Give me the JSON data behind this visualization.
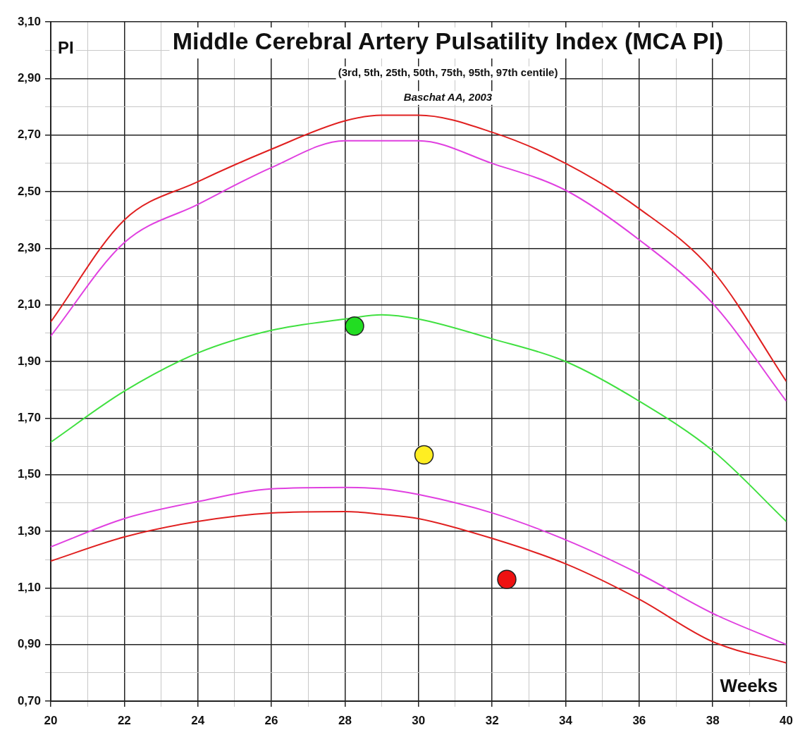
{
  "chart_data": {
    "type": "line",
    "title": "Middle Cerebral Artery Pulsatility Index (MCA PI)",
    "subtitle": "(3rd, 5th, 25th, 50th, 75th, 95th, 97th centile)",
    "annotations": [
      "Baschat AA, 2003"
    ],
    "xlabel": "Weeks",
    "ylabel": "PI",
    "x": [
      20,
      22,
      24,
      26,
      28,
      29,
      30,
      32,
      34,
      36,
      38,
      40
    ],
    "series": [
      {
        "color": "#e02020",
        "values": [
          2.04,
          2.4,
          2.535,
          2.65,
          2.75,
          2.77,
          2.77,
          2.71,
          2.6,
          2.44,
          2.22,
          1.83
        ]
      },
      {
        "color": "#e040e0",
        "values": [
          1.99,
          2.32,
          2.455,
          2.585,
          2.68,
          2.68,
          2.68,
          2.6,
          2.505,
          2.33,
          2.105,
          1.76
        ]
      },
      {
        "color": "#40e040",
        "values": [
          1.615,
          1.795,
          1.93,
          2.01,
          2.05,
          2.065,
          2.05,
          1.98,
          1.9,
          1.76,
          1.585,
          1.335
        ]
      },
      {
        "color": "#e040e0",
        "values": [
          1.245,
          1.345,
          1.405,
          1.45,
          1.455,
          1.45,
          1.43,
          1.365,
          1.27,
          1.15,
          1.01,
          0.9
        ]
      },
      {
        "color": "#e02020",
        "values": [
          1.195,
          1.28,
          1.335,
          1.365,
          1.37,
          1.36,
          1.345,
          1.275,
          1.185,
          1.06,
          0.91,
          0.835
        ]
      },
      {
        "type": "scatter",
        "marker": "circle",
        "x": [
          28.26,
          30.15,
          32.4
        ],
        "values": [
          2.025,
          1.57,
          1.13
        ],
        "colors": [
          "#22dd22",
          "#ffee22",
          "#ee1111"
        ]
      }
    ],
    "marker": "none",
    "line_style": "solid",
    "legend": false,
    "grid": true,
    "xlim": [
      20,
      40
    ],
    "ylim": [
      0.7,
      3.1
    ],
    "xticks": [
      20,
      {
        "value": 21,
        "label": null
      },
      22,
      {
        "value": 23,
        "label": null
      },
      24,
      {
        "value": 25,
        "label": null
      },
      26,
      {
        "value": 27,
        "label": null
      },
      28,
      {
        "value": 29,
        "label": null
      },
      30,
      {
        "value": 31,
        "label": null
      },
      32,
      {
        "value": 33,
        "label": null
      },
      34,
      {
        "value": 35,
        "label": null
      },
      36,
      {
        "value": 37,
        "label": null
      },
      38,
      {
        "value": 39,
        "label": null
      },
      40
    ],
    "yticks": [
      {
        "value": 0.7,
        "label": "0,70"
      },
      {
        "value": 0.8,
        "label": null
      },
      {
        "value": 0.9,
        "label": "0,90"
      },
      {
        "value": 1.0,
        "label": null
      },
      {
        "value": 1.1,
        "label": "1,10"
      },
      {
        "value": 1.2,
        "label": null
      },
      {
        "value": 1.3,
        "label": "1,30"
      },
      {
        "value": 1.4,
        "label": null
      },
      {
        "value": 1.5,
        "label": "1,50"
      },
      {
        "value": 1.6,
        "label": null
      },
      {
        "value": 1.7,
        "label": "1,70"
      },
      {
        "value": 1.8,
        "label": null
      },
      {
        "value": 1.9,
        "label": "1,90"
      },
      {
        "value": 2.0,
        "label": null
      },
      {
        "value": 2.1,
        "label": "2,10"
      },
      {
        "value": 2.2,
        "label": null
      },
      {
        "value": 2.3,
        "label": "2,30"
      },
      {
        "value": 2.4,
        "label": null
      },
      {
        "value": 2.5,
        "label": "2,50"
      },
      {
        "value": 2.6,
        "label": null
      },
      {
        "value": 2.7,
        "label": "2,70"
      },
      {
        "value": 2.8,
        "label": null
      },
      {
        "value": 2.9,
        "label": "2,90"
      },
      {
        "value": 3.0,
        "label": null
      },
      {
        "value": 3.1,
        "label": "3,10"
      }
    ]
  }
}
